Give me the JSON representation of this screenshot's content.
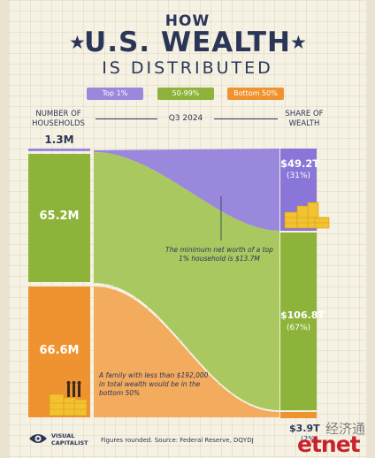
{
  "title": {
    "top": "HOW",
    "main": "U.S. WEALTH",
    "bottom": "IS DISTRIBUTED"
  },
  "legend": [
    {
      "label": "Top 1%",
      "color": "#9a88dd"
    },
    {
      "label": "50-99%",
      "color": "#8db33a"
    },
    {
      "label": "Bottom 50%",
      "color": "#ef9330"
    }
  ],
  "headers": {
    "left_line1": "NUMBER OF",
    "left_line2": "HOUSEHOLDS",
    "period": "Q3 2024",
    "right_line1": "SHARE OF",
    "right_line2": "WEALTH"
  },
  "chart_data": {
    "type": "sankey",
    "period": "Q3 2024",
    "groups": [
      {
        "name": "Top 1%",
        "households": "1.3M",
        "households_m": 1.3,
        "wealth": "$49.2T",
        "wealth_t": 49.2,
        "share": "(31%)",
        "share_pct": 31
      },
      {
        "name": "50-99%",
        "households": "65.2M",
        "households_m": 65.2,
        "wealth": "$106.8T",
        "wealth_t": 106.8,
        "share": "(67%)",
        "share_pct": 67
      },
      {
        "name": "Bottom 50%",
        "households": "66.6M",
        "households_m": 66.6,
        "wealth": "$3.9T",
        "wealth_t": 3.9,
        "share": "(2%)",
        "share_pct": 2
      }
    ],
    "annotations": {
      "top": "The minimum net worth of a top 1% household is $13.7M",
      "bottom": "A family with less than $192,000 in total wealth would be in the bottom 50%"
    }
  },
  "footer": {
    "brand_line1": "VISUAL",
    "brand_line2": "CAPITALIST",
    "source": "Figures rounded. Source: Federal Reserve, DQYDJ"
  },
  "watermark": {
    "chinese": "经济通",
    "latin": "etnet"
  },
  "colors": {
    "navy": "#2b3558",
    "purple": "#9a88dd",
    "green": "#8db33a",
    "orange": "#ef9330",
    "gold": "#f2c230",
    "background": "#f6f2e3"
  }
}
